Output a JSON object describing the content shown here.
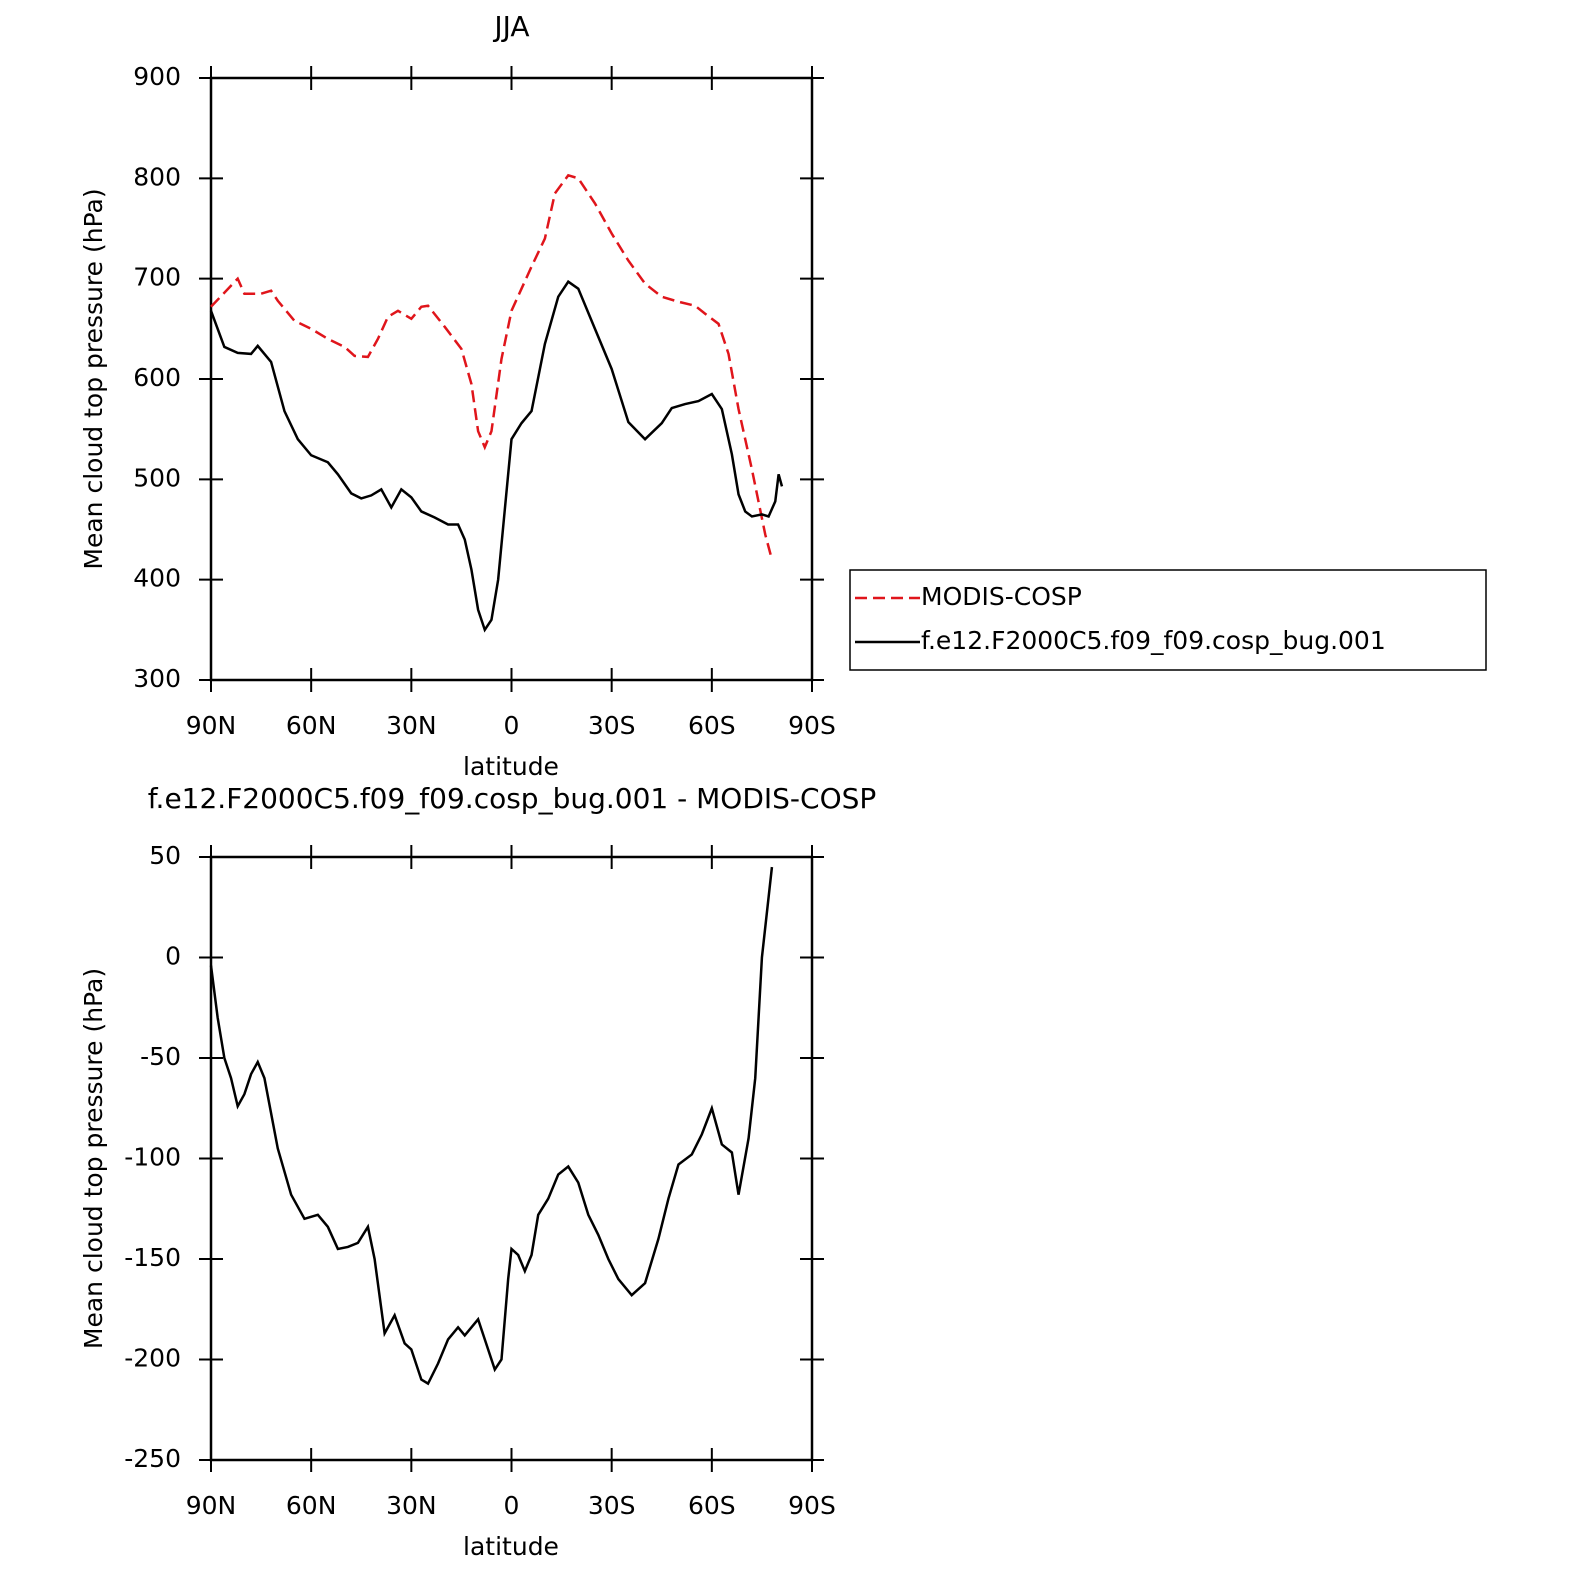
{
  "chart_data": [
    {
      "type": "line",
      "title": "JJA",
      "x_label": "latitude",
      "y_label": "Mean cloud top pressure (hPa)",
      "xlim": [
        90,
        -90
      ],
      "xticks": [
        {
          "value": 90,
          "label": "90N"
        },
        {
          "value": 60,
          "label": "60N"
        },
        {
          "value": 30,
          "label": "30N"
        },
        0,
        {
          "value": -30,
          "label": "30S"
        },
        {
          "value": -60,
          "label": "60S"
        },
        {
          "value": -90,
          "label": "90S"
        }
      ],
      "ylim": [
        300,
        900
      ],
      "yticks": [
        300,
        400,
        500,
        600,
        700,
        800,
        900
      ],
      "legend": "right",
      "series": [
        {
          "name": "MODIS-COSP",
          "color": "#e0151b",
          "dash": true,
          "x": [
            90,
            82,
            80,
            75,
            72,
            70,
            65,
            60,
            55,
            50,
            47,
            43,
            40,
            37,
            34,
            30,
            27,
            25,
            20,
            15,
            12,
            10,
            8,
            6,
            3,
            0,
            -3,
            -6,
            -10,
            -13,
            -17,
            -20,
            -25,
            -30,
            -35,
            -40,
            -45,
            -50,
            -55,
            -58,
            -62,
            -65,
            -68,
            -72,
            -76,
            -78
          ],
          "values": [
            672,
            700,
            685,
            685,
            688,
            678,
            658,
            650,
            640,
            632,
            623,
            622,
            640,
            662,
            668,
            660,
            672,
            673,
            652,
            630,
            595,
            548,
            532,
            548,
            620,
            668,
            690,
            712,
            740,
            785,
            803,
            800,
            775,
            745,
            718,
            695,
            682,
            677,
            673,
            665,
            655,
            625,
            570,
            510,
            445,
            420
          ]
        },
        {
          "name": "f.e12.F2000C5.f09_f09.cosp_bug.001",
          "color": "#000000",
          "dash": false,
          "x": [
            90,
            86,
            82,
            78,
            76,
            72,
            68,
            64,
            60,
            55,
            52,
            48,
            45,
            42,
            39,
            36,
            33,
            30,
            27,
            23,
            19,
            16,
            14,
            12,
            10,
            8,
            6,
            4,
            2,
            0,
            -3,
            -6,
            -10,
            -14,
            -17,
            -20,
            -25,
            -30,
            -35,
            -40,
            -45,
            -48,
            -52,
            -56,
            -60,
            -63,
            -66,
            -68,
            -70,
            -72,
            -75,
            -77,
            -79,
            -80,
            -81
          ],
          "values": [
            668,
            632,
            626,
            625,
            633,
            617,
            568,
            540,
            524,
            517,
            505,
            486,
            481,
            484,
            490,
            472,
            490,
            482,
            468,
            462,
            455,
            455,
            440,
            410,
            370,
            350,
            360,
            400,
            470,
            540,
            556,
            568,
            635,
            682,
            697,
            690,
            650,
            610,
            557,
            540,
            556,
            571,
            575,
            578,
            585,
            570,
            525,
            485,
            468,
            463,
            465,
            463,
            478,
            505,
            493
          ]
        }
      ]
    },
    {
      "type": "line",
      "title": "f.e12.F2000C5.f09_f09.cosp_bug.001 - MODIS-COSP",
      "x_label": "latitude",
      "y_label": "Mean cloud top pressure (hPa)",
      "xlim": [
        90,
        -90
      ],
      "xticks": [
        {
          "value": 90,
          "label": "90N"
        },
        {
          "value": 60,
          "label": "60N"
        },
        {
          "value": 30,
          "label": "30N"
        },
        0,
        {
          "value": -30,
          "label": "30S"
        },
        {
          "value": -60,
          "label": "60S"
        },
        {
          "value": -90,
          "label": "90S"
        }
      ],
      "ylim": [
        -250,
        50
      ],
      "yticks": [
        -250,
        -200,
        -150,
        -100,
        -50,
        0,
        50
      ],
      "series": [
        {
          "color": "#000000",
          "dash": false,
          "x": [
            90,
            88,
            86,
            84,
            82,
            80,
            78,
            76,
            74,
            70,
            66,
            62,
            58,
            55,
            52,
            49,
            46,
            43,
            41,
            38,
            35,
            32,
            30,
            27,
            25,
            22,
            19,
            16,
            14,
            10,
            8,
            5,
            3,
            1,
            0,
            -2,
            -4,
            -6,
            -8,
            -11,
            -14,
            -17,
            -20,
            -23,
            -26,
            -29,
            -32,
            -36,
            -40,
            -44,
            -47,
            -50,
            -54,
            -57,
            -60,
            -63,
            -66,
            -68,
            -71,
            -73,
            -75,
            -78
          ],
          "values": [
            -4,
            -30,
            -50,
            -60,
            -74,
            -68,
            -58,
            -52,
            -60,
            -95,
            -118,
            -130,
            -128,
            -134,
            -145,
            -144,
            -142,
            -134,
            -150,
            -187,
            -178,
            -192,
            -195,
            -210,
            -212,
            -202,
            -190,
            -184,
            -188,
            -180,
            -190,
            -205,
            -200,
            -160,
            -145,
            -148,
            -156,
            -148,
            -128,
            -120,
            -108,
            -104,
            -112,
            -128,
            -138,
            -150,
            -160,
            -168,
            -162,
            -140,
            -120,
            -103,
            -98,
            -88,
            -75,
            -93,
            -97,
            -118,
            -90,
            -60,
            0,
            45
          ]
        }
      ]
    }
  ]
}
